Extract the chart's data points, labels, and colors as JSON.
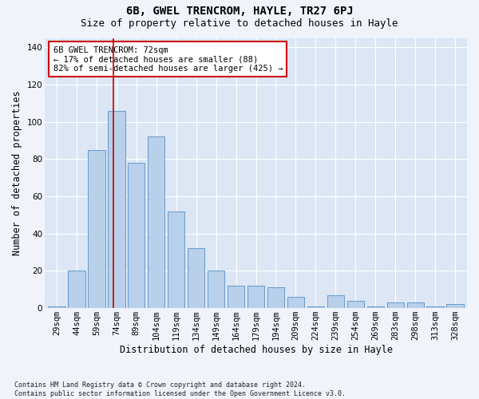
{
  "title": "6B, GWEL TRENCROM, HAYLE, TR27 6PJ",
  "subtitle": "Size of property relative to detached houses in Hayle",
  "xlabel": "Distribution of detached houses by size in Hayle",
  "ylabel": "Number of detached properties",
  "categories": [
    "29sqm",
    "44sqm",
    "59sqm",
    "74sqm",
    "89sqm",
    "104sqm",
    "119sqm",
    "134sqm",
    "149sqm",
    "164sqm",
    "179sqm",
    "194sqm",
    "209sqm",
    "224sqm",
    "239sqm",
    "254sqm",
    "269sqm",
    "283sqm",
    "298sqm",
    "313sqm",
    "328sqm"
  ],
  "bar_values": [
    1,
    20,
    85,
    106,
    78,
    92,
    52,
    32,
    20,
    12,
    12,
    11,
    6,
    1,
    7,
    4,
    1,
    3,
    3,
    1,
    2
  ],
  "bar_color": "#b8d0ea",
  "bar_edge_color": "#6699cc",
  "bg_color": "#dce6f5",
  "grid_color": "#ffffff",
  "vline_color": "#cc0000",
  "vline_x_index": 2.85,
  "annotation_text": "6B GWEL TRENCROM: 72sqm\n← 17% of detached houses are smaller (88)\n82% of semi-detached houses are larger (425) →",
  "annotation_box_color": "#cc0000",
  "ylim": [
    0,
    145
  ],
  "yticks": [
    0,
    20,
    40,
    60,
    80,
    100,
    120,
    140
  ],
  "footnote": "Contains HM Land Registry data © Crown copyright and database right 2024.\nContains public sector information licensed under the Open Government Licence v3.0.",
  "title_fontsize": 10,
  "subtitle_fontsize": 9,
  "xlabel_fontsize": 8.5,
  "ylabel_fontsize": 8.5,
  "tick_fontsize": 7.5,
  "footnote_fontsize": 6.0,
  "ann_fontsize": 7.5
}
